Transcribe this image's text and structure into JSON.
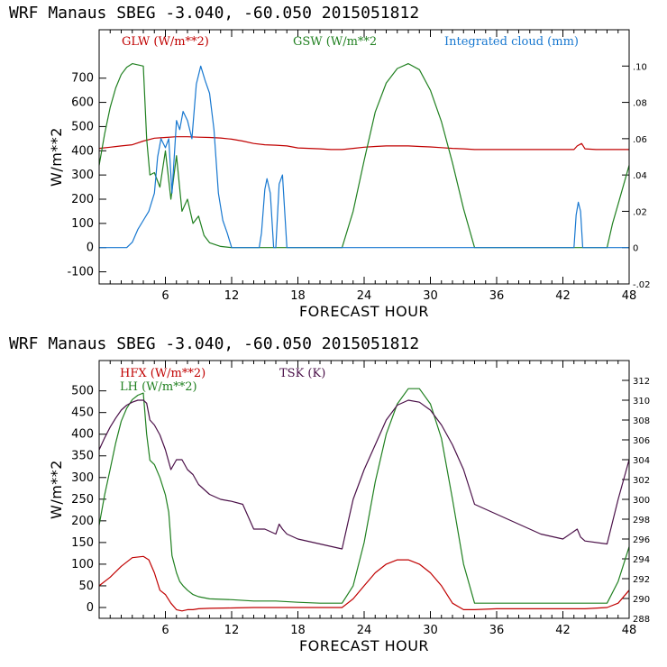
{
  "chart_data": [
    {
      "type": "line",
      "title": "WRF   Manaus SBEG   -3.040, -60.050  2015051812",
      "xlabel": "FORECAST HOUR",
      "ylabel": "W/m**2",
      "xlim": [
        0,
        48
      ],
      "xticks": [
        "6",
        "12",
        "18",
        "24",
        "30",
        "36",
        "42",
        "48"
      ],
      "xtick_values": [
        6,
        12,
        18,
        24,
        30,
        36,
        42,
        48
      ],
      "ylim": [
        -150,
        900
      ],
      "yticks": [
        "-100",
        "0",
        "100",
        "200",
        "300",
        "400",
        "500",
        "600",
        "700"
      ],
      "ytick_values": [
        -100,
        0,
        100,
        200,
        300,
        400,
        500,
        600,
        700
      ],
      "y2lim": [
        -0.02,
        0.12
      ],
      "y2ticks": [
        "-.02",
        "0",
        ".02",
        ".04",
        ".06",
        ".08",
        ".10"
      ],
      "y2tick_values": [
        -0.02,
        0,
        0.02,
        0.04,
        0.06,
        0.08,
        0.1
      ],
      "grid": false,
      "series": [
        {
          "name": "GLW (W/m**2)",
          "color": "#c00000",
          "axis": "left",
          "x": [
            0,
            1,
            2,
            3,
            4,
            5,
            6,
            7,
            8,
            9,
            10,
            11,
            12,
            13,
            14,
            15,
            16,
            17,
            18,
            19,
            20,
            21,
            22,
            23,
            24,
            25,
            26,
            27,
            28,
            29,
            30,
            31,
            32,
            33,
            34,
            35,
            36,
            37,
            38,
            39,
            40,
            41,
            42,
            43,
            43.3,
            43.7,
            44,
            45,
            46,
            47,
            48
          ],
          "y": [
            410,
            415,
            420,
            425,
            440,
            452,
            455,
            458,
            458,
            456,
            455,
            453,
            448,
            440,
            430,
            425,
            423,
            420,
            412,
            410,
            408,
            405,
            405,
            410,
            415,
            418,
            420,
            420,
            420,
            418,
            416,
            413,
            410,
            408,
            405,
            405,
            405,
            405,
            405,
            405,
            405,
            405,
            405,
            405,
            420,
            430,
            408,
            405,
            405,
            405,
            405
          ]
        },
        {
          "name": "GSW (W/m**2",
          "color": "#208020",
          "axis": "left",
          "x": [
            0,
            0.5,
            1,
            1.5,
            2,
            2.5,
            3,
            3.5,
            4,
            4.3,
            4.6,
            5,
            5.5,
            6,
            6.5,
            7,
            7.5,
            8,
            8.5,
            9,
            9.5,
            10,
            11,
            12,
            22,
            23,
            24,
            25,
            26,
            27,
            28,
            29,
            30,
            31,
            32,
            33,
            34,
            46,
            46.5,
            47,
            47.5,
            48
          ],
          "y": [
            340,
            470,
            580,
            660,
            715,
            745,
            760,
            755,
            750,
            450,
            300,
            310,
            250,
            400,
            200,
            380,
            150,
            200,
            100,
            130,
            50,
            20,
            5,
            0,
            0,
            150,
            360,
            560,
            680,
            740,
            760,
            735,
            650,
            520,
            350,
            160,
            0,
            0,
            100,
            180,
            260,
            340
          ]
        },
        {
          "name": "Integrated cloud (mm)",
          "color": "#1878d0",
          "axis": "right",
          "x": [
            0,
            2.5,
            3,
            3.5,
            4,
            4.5,
            5,
            5.3,
            5.6,
            6,
            6.3,
            6.6,
            7,
            7.3,
            7.6,
            8,
            8.4,
            8.8,
            9.2,
            9.6,
            10,
            10.4,
            10.8,
            11.2,
            11.6,
            12,
            14.5,
            14.7,
            15,
            15.2,
            15.5,
            15.8,
            16,
            16.3,
            16.6,
            17,
            17.3,
            43,
            43.2,
            43.4,
            43.6,
            43.8,
            44,
            48
          ],
          "y": [
            0,
            0,
            0.003,
            0.01,
            0.015,
            0.02,
            0.03,
            0.05,
            0.06,
            0.055,
            0.06,
            0.03,
            0.07,
            0.065,
            0.075,
            0.07,
            0.06,
            0.09,
            0.1,
            0.092,
            0.085,
            0.065,
            0.03,
            0.015,
            0.008,
            0,
            0,
            0.008,
            0.032,
            0.038,
            0.03,
            0,
            0,
            0.035,
            0.04,
            0,
            0,
            0,
            0.018,
            0.025,
            0.02,
            0,
            0,
            0
          ]
        }
      ]
    },
    {
      "type": "line",
      "title": "WRF   Manaus SBEG   -3.040, -60.050  2015051812",
      "xlabel": "FORECAST HOUR",
      "ylabel": "W/m**2",
      "xlim": [
        0,
        48
      ],
      "xticks": [
        "6",
        "12",
        "18",
        "24",
        "30",
        "36",
        "42",
        "48"
      ],
      "xtick_values": [
        6,
        12,
        18,
        24,
        30,
        36,
        42,
        48
      ],
      "ylim": [
        -25,
        570
      ],
      "yticks": [
        "0",
        "50",
        "100",
        "150",
        "200",
        "250",
        "300",
        "350",
        "400",
        "450",
        "500"
      ],
      "ytick_values": [
        0,
        50,
        100,
        150,
        200,
        250,
        300,
        350,
        400,
        450,
        500
      ],
      "y2lim": [
        288,
        314
      ],
      "y2ticks": [
        "288",
        "290",
        "292",
        "294",
        "296",
        "298",
        "300",
        "302",
        "304",
        "306",
        "308",
        "310",
        "312"
      ],
      "y2tick_values": [
        288,
        290,
        292,
        294,
        296,
        298,
        300,
        302,
        304,
        306,
        308,
        310,
        312
      ],
      "grid": false,
      "series": [
        {
          "name": "HFX (W/m**2)",
          "color": "#c00000",
          "axis": "left",
          "x": [
            0,
            1,
            2,
            3,
            4,
            4.5,
            5,
            5.5,
            6,
            6.5,
            7,
            7.5,
            8,
            8.5,
            9,
            10,
            12,
            14,
            16,
            18,
            20,
            22,
            23,
            24,
            25,
            26,
            27,
            28,
            29,
            30,
            31,
            32,
            33,
            34,
            36,
            38,
            40,
            42,
            44,
            46,
            47,
            48
          ],
          "y": [
            50,
            70,
            95,
            115,
            118,
            110,
            80,
            40,
            30,
            10,
            -5,
            -8,
            -5,
            -5,
            -3,
            -2,
            -1,
            0,
            0,
            0,
            0,
            0,
            20,
            50,
            80,
            100,
            110,
            110,
            100,
            80,
            50,
            10,
            -5,
            -5,
            -3,
            -3,
            -3,
            -3,
            -3,
            0,
            10,
            40
          ]
        },
        {
          "name": "LH  (W/m**2)",
          "color": "#208020",
          "axis": "left",
          "x": [
            0,
            0.5,
            1,
            1.5,
            2,
            2.5,
            3,
            3.5,
            4,
            4.3,
            4.6,
            5,
            5.5,
            6,
            6.3,
            6.6,
            7,
            7.3,
            7.6,
            8,
            8.5,
            9,
            10,
            12,
            14,
            16,
            18,
            20,
            22,
            23,
            24,
            25,
            26,
            27,
            28,
            29,
            30,
            31,
            32,
            33,
            34,
            36,
            38,
            40,
            42,
            44,
            46,
            47,
            48
          ],
          "y": [
            190,
            260,
            320,
            380,
            430,
            460,
            480,
            490,
            495,
            400,
            340,
            330,
            300,
            260,
            220,
            120,
            80,
            60,
            50,
            40,
            30,
            25,
            20,
            18,
            15,
            15,
            12,
            10,
            10,
            50,
            150,
            290,
            400,
            470,
            505,
            505,
            470,
            390,
            250,
            100,
            10,
            10,
            10,
            10,
            10,
            10,
            10,
            60,
            140
          ]
        },
        {
          "name": "TSK (K)",
          "color": "#4a1048",
          "axis": "right",
          "x": [
            0,
            0.5,
            1,
            1.5,
            2,
            2.5,
            3,
            3.5,
            4,
            4.3,
            4.6,
            5,
            5.5,
            6,
            6.5,
            7,
            7.5,
            8,
            8.5,
            9,
            10,
            11,
            12,
            13,
            14,
            15,
            16,
            16.3,
            16.6,
            17,
            18,
            20,
            22,
            23,
            24,
            25,
            26,
            27,
            28,
            29,
            30,
            31,
            32,
            33,
            34,
            36,
            38,
            40,
            42,
            43.3,
            43.6,
            44,
            46,
            47,
            48
          ],
          "y": [
            305,
            306.2,
            307.3,
            308.2,
            309,
            309.5,
            309.8,
            310,
            310,
            309.7,
            308,
            307.5,
            306.5,
            305,
            303,
            304,
            304,
            303,
            302.5,
            301.5,
            300.5,
            300,
            299.8,
            299.5,
            297,
            297,
            296.5,
            297.5,
            297,
            296.5,
            296,
            295.5,
            295,
            300,
            303,
            305.5,
            308,
            309.5,
            310,
            309.8,
            309,
            307.5,
            305.5,
            303,
            299.5,
            298.5,
            297.5,
            296.5,
            296,
            297,
            296.2,
            295.8,
            295.5,
            300,
            304
          ]
        }
      ]
    }
  ]
}
